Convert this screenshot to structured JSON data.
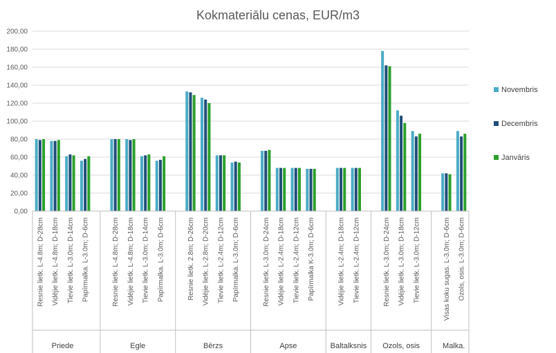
{
  "chart_data": {
    "type": "bar",
    "title": "Kokmateriālu cenas, EUR/m3",
    "xlabel": "",
    "ylabel": "",
    "ylim": [
      0,
      200
    ],
    "y_ticks": [
      "0,00",
      "20,00",
      "40,00",
      "60,00",
      "80,00",
      "100,00",
      "120,00",
      "140,00",
      "160,00",
      "180,00",
      "200,00"
    ],
    "grid": true,
    "legend_position": "right",
    "colors": [
      "#4bacc6",
      "#1f4e79",
      "#2ca02c"
    ],
    "groups": [
      {
        "name": "Priede",
        "categories": [
          "Resnie lietk. L-4.8m; D-28cm",
          "Vidējie lietk. L-4.8m; D-18cm",
          "Tievie lietk. L-3.0m; D-14cm",
          "Papīrmalka. L-3.0m; D-6cm"
        ]
      },
      {
        "name": "Egle",
        "categories": [
          "Resnie lietk. L-4.8m; D-28cm",
          "Vidējie lietk. L-4.8m; D-18cm",
          "Tievie lietk. L-3.0m; D-14cm",
          "Papīrmalka. L-3.0m; D-6cm"
        ]
      },
      {
        "name": "Bērzs",
        "categories": [
          "Resnie lietk. 2.8m; D-26cm",
          "Vidējie lietk. L-2.8m; D-20cm",
          "Tievie lietk. L-2.4m; D-12cm",
          "Papīrmalka. L-3.0m; D-6cm"
        ]
      },
      {
        "name": "Apse",
        "categories": [
          "Resnie lietk. L-3.0m; D-24cm",
          "Vidējie lietk. L-2.4m; D-18cm",
          "Tievie lietk. L-2.4m; D-12cm",
          "Papīrmalka K-3.0m; D-6cm"
        ]
      },
      {
        "name": "Baltalksnis",
        "categories": [
          "Vidējie lietk. L-2.4m; D-18cm",
          "Tievie lietk. L-2.4m; D-12cm"
        ]
      },
      {
        "name": "Ozols, osis",
        "categories": [
          "Resnie lietk. L-3.0m; D-24cm",
          "Vidējie lietk. L-3.0m; D-18cm",
          "Tievie lietk. L-3.0m; D-12cm"
        ]
      },
      {
        "name": "Malka.",
        "categories": [
          "Visas koku sugas. L-3.0m; D-6cm",
          "Ozols, osis. L-3.0m; D-6cm"
        ]
      }
    ],
    "series": [
      {
        "name": "Novembris",
        "values": [
          80,
          78,
          61,
          56,
          80,
          80,
          61,
          56,
          133,
          126,
          62,
          54,
          67,
          48,
          48,
          47,
          48,
          48,
          178,
          112,
          89,
          42,
          89
        ]
      },
      {
        "name": "Decembris",
        "values": [
          79,
          78,
          63,
          58,
          80,
          79,
          62,
          57,
          132,
          124,
          62,
          55,
          67,
          48,
          48,
          47,
          48,
          48,
          162,
          106,
          83,
          42,
          83
        ]
      },
      {
        "name": "Janvāris",
        "values": [
          80,
          79,
          62,
          61,
          80,
          80,
          63,
          61,
          129,
          120,
          62,
          54,
          68,
          48,
          48,
          47,
          48,
          48,
          161,
          98,
          86,
          41,
          86
        ]
      }
    ]
  }
}
